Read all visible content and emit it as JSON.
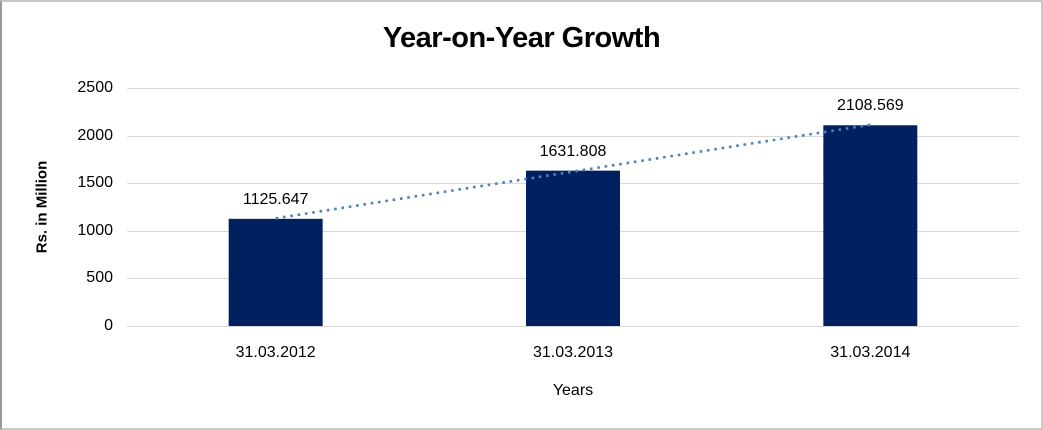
{
  "chart_data": {
    "type": "bar",
    "title": "Year-on-Year Growth",
    "categories": [
      "31.03.2012",
      "31.03.2013",
      "31.03.2014"
    ],
    "values": [
      1125.647,
      1631.808,
      2108.569
    ],
    "data_labels": [
      "1125.647",
      "1631.808",
      "2108.569"
    ],
    "xlabel": "Years",
    "ylabel": "Rs. in Million",
    "ylim": [
      0,
      2500
    ],
    "yticks": [
      0,
      500,
      1000,
      1500,
      2000,
      2500
    ],
    "ytick_labels": [
      "0",
      "500",
      "1000",
      "1500",
      "2000",
      "2500"
    ],
    "grid": true,
    "legend": "none",
    "trendline": "linear",
    "colors": {
      "bar": "#002060",
      "trendline": "#4F81BD",
      "gridline": "#D9D9D9",
      "text": "#000000",
      "background": "#FFFFFF",
      "frame_border": "#C9C9C9"
    }
  }
}
